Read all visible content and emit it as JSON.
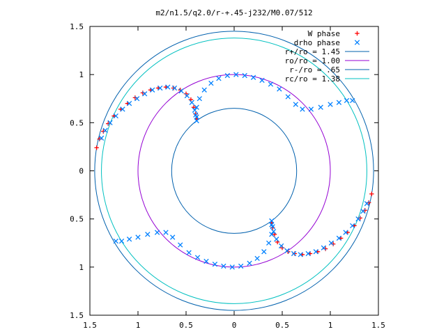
{
  "chart_data": {
    "type": "scatter",
    "title": "m2/n1.5/q2.0/r-+.45-j232/M0.07/512",
    "xlabel": "",
    "ylabel": "",
    "xlim": [
      -1.5,
      1.5
    ],
    "ylim": [
      -1.5,
      1.5
    ],
    "x_ticks": [
      -1.5,
      -1,
      -0.5,
      0,
      0.5,
      1,
      1.5
    ],
    "y_ticks": [
      -1.5,
      -1,
      -0.5,
      0,
      0.5,
      1,
      1.5
    ],
    "x_tick_labels": [
      "1.5",
      "1",
      "0.5",
      "0",
      "0.5",
      "1",
      "1.5"
    ],
    "y_tick_labels": [
      "1.5",
      "1",
      "0.5",
      "0",
      "0.5",
      "1",
      "1.5"
    ],
    "grid": false,
    "legend_position": "top-right",
    "series": [
      {
        "name": "W phase",
        "kind": "points",
        "marker": "+",
        "color": "#ff0000",
        "points": [
          [
            -1.43,
            0.24
          ],
          [
            -1.4,
            0.33
          ],
          [
            -1.36,
            0.41
          ],
          [
            -1.31,
            0.49
          ],
          [
            -1.25,
            0.57
          ],
          [
            -1.18,
            0.64
          ],
          [
            -1.11,
            0.7
          ],
          [
            -1.03,
            0.76
          ],
          [
            -0.95,
            0.81
          ],
          [
            -0.87,
            0.84
          ],
          [
            -0.79,
            0.86
          ],
          [
            -0.71,
            0.87
          ],
          [
            -0.63,
            0.86
          ],
          [
            -0.56,
            0.84
          ],
          [
            -0.5,
            0.8
          ],
          [
            -0.45,
            0.74
          ],
          [
            -0.42,
            0.66
          ],
          [
            -0.4,
            0.59
          ],
          [
            -0.39,
            0.54
          ],
          [
            1.43,
            -0.24
          ],
          [
            1.4,
            -0.33
          ],
          [
            1.36,
            -0.41
          ],
          [
            1.31,
            -0.49
          ],
          [
            1.25,
            -0.57
          ],
          [
            1.18,
            -0.64
          ],
          [
            1.11,
            -0.7
          ],
          [
            1.03,
            -0.76
          ],
          [
            0.95,
            -0.81
          ],
          [
            0.87,
            -0.84
          ],
          [
            0.79,
            -0.86
          ],
          [
            0.71,
            -0.87
          ],
          [
            0.63,
            -0.86
          ],
          [
            0.56,
            -0.84
          ],
          [
            0.5,
            -0.8
          ],
          [
            0.45,
            -0.74
          ],
          [
            0.42,
            -0.66
          ],
          [
            0.4,
            -0.59
          ],
          [
            0.39,
            -0.54
          ]
        ]
      },
      {
        "name": "drho phase",
        "kind": "points",
        "marker": "x",
        "color": "#0080ff",
        "points": [
          [
            -1.38,
            0.34
          ],
          [
            -1.34,
            0.42
          ],
          [
            -1.29,
            0.5
          ],
          [
            -1.23,
            0.57
          ],
          [
            -1.16,
            0.64
          ],
          [
            -1.09,
            0.7
          ],
          [
            -1.01,
            0.75
          ],
          [
            -0.93,
            0.8
          ],
          [
            -0.85,
            0.84
          ],
          [
            -0.77,
            0.86
          ],
          [
            -0.69,
            0.87
          ],
          [
            -0.62,
            0.86
          ],
          [
            -0.55,
            0.83
          ],
          [
            -0.49,
            0.78
          ],
          [
            -0.44,
            0.71
          ],
          [
            -0.41,
            0.63
          ],
          [
            -0.39,
            0.56
          ],
          [
            -0.39,
            0.52
          ],
          [
            -0.4,
            0.58
          ],
          [
            -0.39,
            0.66
          ],
          [
            -0.36,
            0.75
          ],
          [
            -0.31,
            0.84
          ],
          [
            -0.24,
            0.91
          ],
          [
            -0.16,
            0.96
          ],
          [
            -0.07,
            0.99
          ],
          [
            0.02,
            1.0
          ],
          [
            0.11,
            0.99
          ],
          [
            0.2,
            0.97
          ],
          [
            0.29,
            0.94
          ],
          [
            0.38,
            0.9
          ],
          [
            0.47,
            0.85
          ],
          [
            0.56,
            0.77
          ],
          [
            0.64,
            0.69
          ],
          [
            0.71,
            0.64
          ],
          [
            0.8,
            0.64
          ],
          [
            0.9,
            0.66
          ],
          [
            1.0,
            0.69
          ],
          [
            1.09,
            0.71
          ],
          [
            1.17,
            0.73
          ],
          [
            1.23,
            0.73
          ],
          [
            1.38,
            -0.34
          ],
          [
            1.34,
            -0.42
          ],
          [
            1.29,
            -0.5
          ],
          [
            1.23,
            -0.57
          ],
          [
            1.16,
            -0.64
          ],
          [
            1.09,
            -0.7
          ],
          [
            1.01,
            -0.75
          ],
          [
            0.93,
            -0.8
          ],
          [
            0.85,
            -0.84
          ],
          [
            0.77,
            -0.86
          ],
          [
            0.69,
            -0.87
          ],
          [
            0.62,
            -0.86
          ],
          [
            0.55,
            -0.83
          ],
          [
            0.49,
            -0.78
          ],
          [
            0.44,
            -0.71
          ],
          [
            0.41,
            -0.63
          ],
          [
            0.39,
            -0.56
          ],
          [
            0.39,
            -0.52
          ],
          [
            0.4,
            -0.58
          ],
          [
            0.39,
            -0.66
          ],
          [
            0.36,
            -0.75
          ],
          [
            0.31,
            -0.84
          ],
          [
            0.24,
            -0.91
          ],
          [
            0.16,
            -0.96
          ],
          [
            0.07,
            -0.99
          ],
          [
            -0.02,
            -1.0
          ],
          [
            -0.11,
            -0.99
          ],
          [
            -0.2,
            -0.97
          ],
          [
            -0.29,
            -0.94
          ],
          [
            -0.38,
            -0.9
          ],
          [
            -0.47,
            -0.85
          ],
          [
            -0.56,
            -0.77
          ],
          [
            -0.64,
            -0.69
          ],
          [
            -0.71,
            -0.64
          ],
          [
            -0.8,
            -0.64
          ],
          [
            -0.9,
            -0.66
          ],
          [
            -1.0,
            -0.69
          ],
          [
            -1.09,
            -0.71
          ],
          [
            -1.17,
            -0.73
          ],
          [
            -1.23,
            -0.73
          ]
        ]
      },
      {
        "name": "r+/ro = 1.45",
        "kind": "circle",
        "radius": 1.45,
        "color": "#0060ad"
      },
      {
        "name": "ro/ro = 1.00",
        "kind": "circle",
        "radius": 1.0,
        "color": "#9400d3"
      },
      {
        "name": "r-/ro = .65",
        "kind": "circle",
        "radius": 0.65,
        "color": "#0060ad"
      },
      {
        "name": "rc/ro = 1.38",
        "kind": "circle",
        "radius": 1.38,
        "color": "#00c0c0"
      }
    ]
  }
}
